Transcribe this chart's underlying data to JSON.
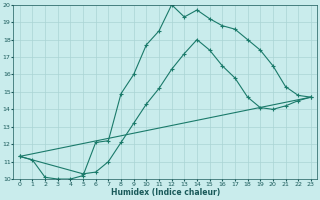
{
  "xlabel": "Humidex (Indice chaleur)",
  "background_color": "#c9ecec",
  "grid_color": "#aad4d4",
  "line_color": "#1a7a6a",
  "xlim": [
    -0.5,
    23.5
  ],
  "ylim": [
    10,
    20
  ],
  "yticks": [
    10,
    11,
    12,
    13,
    14,
    15,
    16,
    17,
    18,
    19,
    20
  ],
  "xticks": [
    0,
    1,
    2,
    3,
    4,
    5,
    6,
    7,
    8,
    9,
    10,
    11,
    12,
    13,
    14,
    15,
    16,
    17,
    18,
    19,
    20,
    21,
    22,
    23
  ],
  "line1_x": [
    0,
    1,
    2,
    3,
    4,
    5,
    6,
    7,
    8,
    9,
    10,
    11,
    12,
    13,
    14,
    15,
    16,
    17,
    18,
    19,
    20,
    21,
    22,
    23
  ],
  "line1_y": [
    11.3,
    11.1,
    10.1,
    10.0,
    10.0,
    10.2,
    12.1,
    12.2,
    14.9,
    16.0,
    17.7,
    18.5,
    20.0,
    19.3,
    19.7,
    19.2,
    18.8,
    18.6,
    18.0,
    17.4,
    16.5,
    15.3,
    14.8,
    14.7
  ],
  "line2_x": [
    0,
    5,
    6,
    7,
    8,
    9,
    10,
    11,
    12,
    13,
    14,
    15,
    16,
    17,
    18,
    19,
    20,
    21,
    22,
    23
  ],
  "line2_y": [
    11.3,
    10.3,
    10.4,
    11.0,
    12.1,
    13.2,
    14.3,
    15.2,
    16.3,
    17.2,
    18.0,
    17.4,
    16.5,
    15.8,
    14.7,
    14.1,
    14.0,
    14.2,
    14.5,
    14.7
  ],
  "line3_x": [
    0,
    23
  ],
  "line3_y": [
    11.3,
    14.7
  ]
}
